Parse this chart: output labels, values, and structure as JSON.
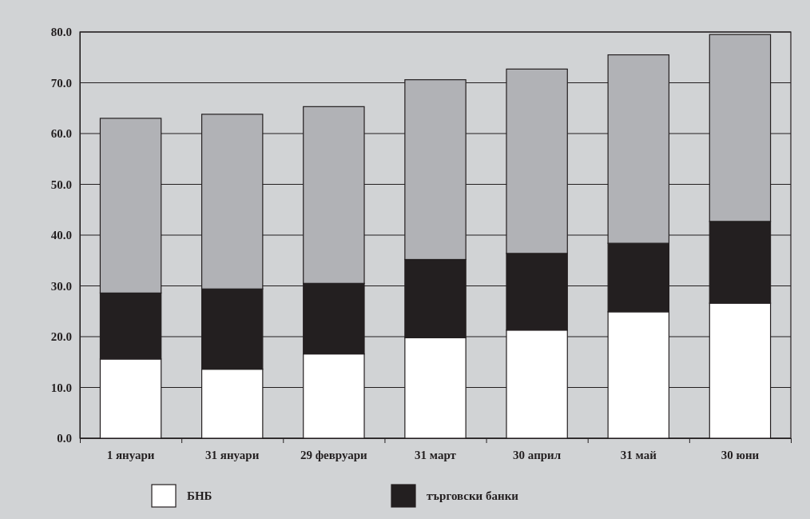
{
  "chart_data": {
    "type": "bar",
    "stacked": true,
    "categories": [
      "1 януари",
      "31 януари",
      "29 февруари",
      "31 март",
      "30 април",
      "31 май",
      "30 юни"
    ],
    "series": [
      {
        "name": "БНБ",
        "color": "#ffffff",
        "values": [
          15.6,
          13.6,
          16.6,
          19.8,
          21.3,
          24.9,
          26.6
        ]
      },
      {
        "name": "търговски банки",
        "color": "#231f20",
        "values": [
          13.0,
          15.8,
          13.9,
          15.4,
          15.1,
          13.5,
          16.1
        ]
      },
      {
        "color": "#b1b2b6",
        "values": [
          34.4,
          34.4,
          34.8,
          35.4,
          36.3,
          37.1,
          36.8
        ]
      }
    ],
    "ylim": [
      0,
      80
    ],
    "yticks": [
      {
        "value": 0,
        "label": "0.0"
      },
      {
        "value": 10,
        "label": "10.0"
      },
      {
        "value": 20,
        "label": "20.0"
      },
      {
        "value": 30,
        "label": "30.0"
      },
      {
        "value": 40,
        "label": "40.0"
      },
      {
        "value": 50,
        "label": "50.0"
      },
      {
        "value": 60,
        "label": "60.0"
      },
      {
        "value": 70,
        "label": "70.0"
      },
      {
        "value": 80,
        "label": "80.0"
      }
    ],
    "grid": "y",
    "legend": "bottom"
  }
}
